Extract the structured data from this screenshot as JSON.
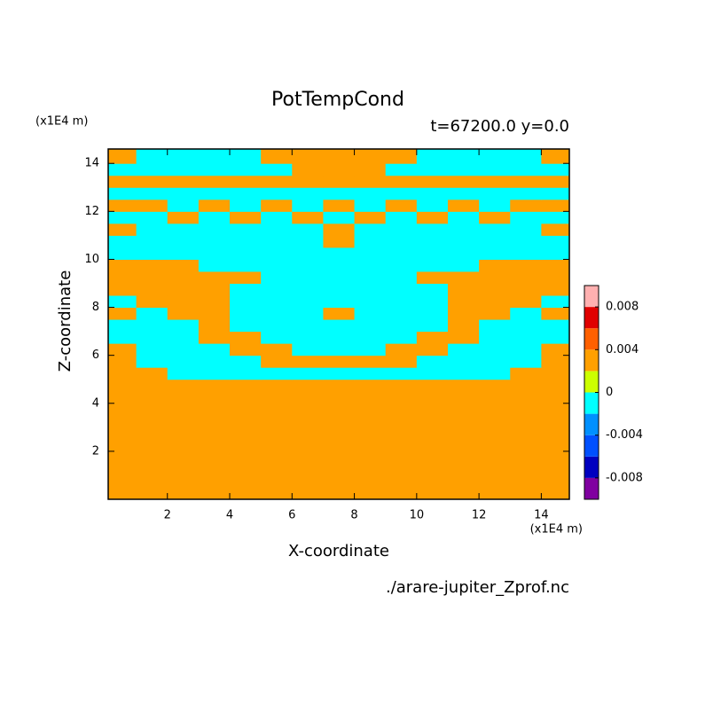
{
  "chart_data": {
    "type": "contourf",
    "title": "PotTempCond",
    "subtitle": "t=67200.0 y=0.0",
    "xlabel": "X-coordinate",
    "ylabel": "Z-coordinate",
    "xunit": "(x1E4 m)",
    "yunit": "(x1E4 m)",
    "source": "./arare-jupiter_Zprof.nc",
    "xlim": [
      0.1,
      14.9
    ],
    "ylim": [
      0,
      14.6
    ],
    "xticks": [
      2,
      4,
      6,
      8,
      10,
      12,
      14
    ],
    "yticks": [
      2,
      4,
      6,
      8,
      10,
      12,
      14
    ],
    "xbins": [
      0,
      1,
      2,
      3,
      4,
      5,
      6,
      7,
      8,
      9,
      10,
      11,
      12,
      13,
      14,
      15
    ],
    "ybins": [
      0,
      5,
      5.5,
      6,
      6.5,
      7,
      7.5,
      8,
      8.5,
      9,
      9.5,
      10,
      10.5,
      11,
      11.5,
      12,
      12.5,
      13,
      13.5,
      14,
      14.6
    ],
    "values": [
      [
        0.002,
        0.002,
        0.002,
        0.002,
        0.002,
        0.002,
        0.002,
        0.002,
        0.002,
        0.002,
        0.002,
        0.002,
        0.002,
        0.002,
        0.002
      ],
      [
        0.002,
        0.002,
        -0.002,
        -0.002,
        -0.002,
        -0.002,
        -0.002,
        -0.002,
        -0.002,
        -0.002,
        -0.002,
        -0.002,
        -0.002,
        0.002,
        0.002
      ],
      [
        0.002,
        -0.002,
        -0.002,
        -0.002,
        -0.002,
        0.002,
        0.002,
        0.002,
        0.002,
        0.002,
        -0.002,
        -0.002,
        -0.002,
        -0.002,
        0.002
      ],
      [
        0.002,
        -0.002,
        -0.002,
        -0.002,
        0.002,
        0.002,
        -0.002,
        -0.002,
        -0.002,
        0.002,
        0.002,
        -0.002,
        -0.002,
        -0.002,
        0.002
      ],
      [
        -0.002,
        -0.002,
        -0.002,
        0.002,
        0.002,
        -0.002,
        -0.002,
        -0.002,
        -0.002,
        -0.002,
        0.002,
        0.002,
        -0.002,
        -0.002,
        -0.002
      ],
      [
        -0.002,
        -0.002,
        -0.002,
        0.002,
        -0.002,
        -0.002,
        -0.002,
        -0.002,
        -0.002,
        -0.002,
        -0.002,
        0.002,
        -0.002,
        -0.002,
        -0.002
      ],
      [
        0.002,
        -0.002,
        0.002,
        0.002,
        -0.002,
        -0.002,
        -0.002,
        0.002,
        -0.002,
        -0.002,
        -0.002,
        0.002,
        0.002,
        -0.002,
        0.002
      ],
      [
        -0.002,
        0.002,
        0.002,
        0.002,
        -0.002,
        -0.002,
        -0.002,
        -0.002,
        -0.002,
        -0.002,
        -0.002,
        0.002,
        0.002,
        0.002,
        -0.002
      ],
      [
        0.002,
        0.002,
        0.002,
        0.002,
        -0.002,
        -0.002,
        -0.002,
        -0.002,
        -0.002,
        -0.002,
        -0.002,
        0.002,
        0.002,
        0.002,
        0.002
      ],
      [
        0.002,
        0.002,
        0.002,
        0.002,
        0.002,
        -0.002,
        -0.002,
        -0.002,
        -0.002,
        -0.002,
        0.002,
        0.002,
        0.002,
        0.002,
        0.002
      ],
      [
        0.002,
        0.002,
        0.002,
        -0.002,
        -0.002,
        -0.002,
        -0.002,
        -0.002,
        -0.002,
        -0.002,
        -0.002,
        -0.002,
        0.002,
        0.002,
        0.002
      ],
      [
        -0.002,
        -0.002,
        -0.002,
        -0.002,
        -0.002,
        -0.002,
        -0.002,
        -0.002,
        -0.002,
        -0.002,
        -0.002,
        -0.002,
        -0.002,
        -0.002,
        -0.002
      ],
      [
        -0.002,
        -0.002,
        -0.002,
        -0.002,
        -0.002,
        -0.002,
        -0.002,
        0.002,
        -0.002,
        -0.002,
        -0.002,
        -0.002,
        -0.002,
        -0.002,
        -0.002
      ],
      [
        0.002,
        -0.002,
        -0.002,
        -0.002,
        -0.002,
        -0.002,
        -0.002,
        0.002,
        -0.002,
        -0.002,
        -0.002,
        -0.002,
        -0.002,
        -0.002,
        0.002
      ],
      [
        -0.002,
        -0.002,
        0.002,
        -0.002,
        0.002,
        -0.002,
        0.002,
        -0.002,
        0.002,
        -0.002,
        0.002,
        -0.002,
        0.002,
        -0.002,
        -0.002
      ],
      [
        0.002,
        0.002,
        -0.002,
        0.002,
        -0.002,
        0.002,
        -0.002,
        0.002,
        -0.002,
        0.002,
        -0.002,
        0.002,
        -0.002,
        0.002,
        0.002
      ],
      [
        -0.002,
        -0.002,
        -0.002,
        -0.002,
        -0.002,
        -0.002,
        -0.002,
        -0.002,
        -0.002,
        -0.002,
        -0.002,
        -0.002,
        -0.002,
        -0.002,
        -0.002
      ],
      [
        0.002,
        0.002,
        0.002,
        0.002,
        0.002,
        0.002,
        0.002,
        0.002,
        0.002,
        0.002,
        0.002,
        0.002,
        0.002,
        0.002,
        0.002
      ],
      [
        -0.002,
        -0.002,
        -0.002,
        -0.002,
        -0.002,
        -0.002,
        0.002,
        0.002,
        0.002,
        -0.002,
        -0.002,
        -0.002,
        -0.002,
        -0.002,
        -0.002
      ],
      [
        0.002,
        -0.002,
        -0.002,
        -0.002,
        -0.002,
        0.002,
        0.002,
        0.002,
        0.002,
        0.002,
        -0.002,
        -0.002,
        -0.002,
        -0.002,
        0.002
      ]
    ],
    "colorbar": {
      "levels": [
        -0.01,
        -0.008,
        -0.006,
        -0.004,
        -0.002,
        0,
        0.002,
        0.004,
        0.006,
        0.008,
        0.01
      ],
      "colors": [
        "#8000a0",
        "#0000c0",
        "#0050ff",
        "#0090ff",
        "#00ffff",
        "#ccff00",
        "#ffa000",
        "#ff6000",
        "#e00000",
        "#ffb0b0"
      ],
      "ticks": [
        -0.008,
        -0.004,
        0,
        0.004,
        0.008
      ]
    }
  }
}
